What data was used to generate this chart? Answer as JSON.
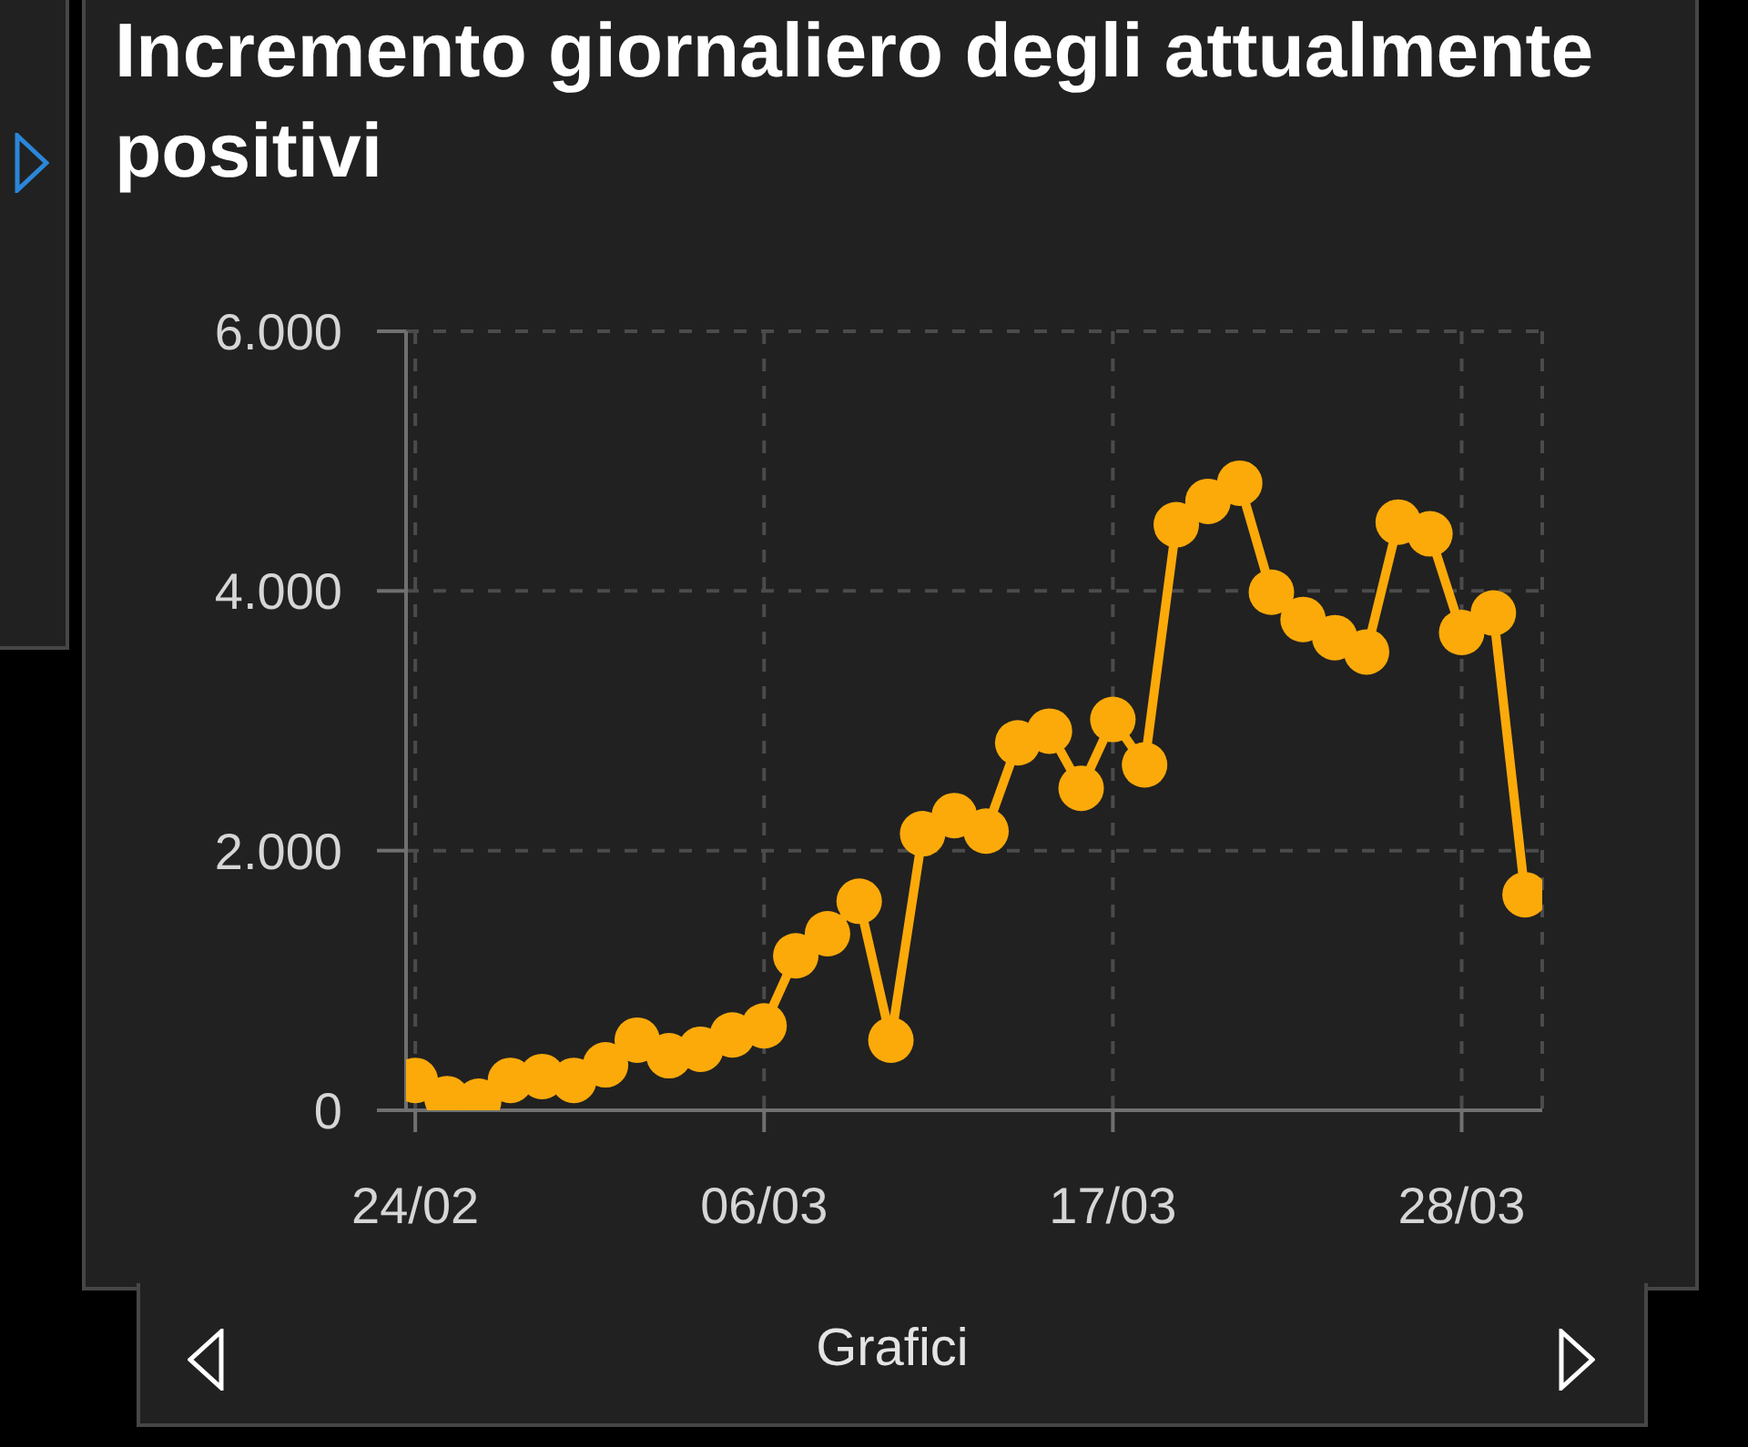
{
  "chart_data": {
    "type": "line",
    "title": "Incremento giornaliero degli attualmente positivi",
    "x": [
      "--02-24",
      "--02-25",
      "--02-26",
      "--02-27",
      "--02-28",
      "--02-29",
      "--03-01",
      "--03-02",
      "--03-03",
      "--03-04",
      "--03-05",
      "--03-06",
      "--03-07",
      "--03-08",
      "--03-09",
      "--03-10",
      "--03-11",
      "--03-12",
      "--03-13",
      "--03-14",
      "--03-15",
      "--03-16",
      "--03-17",
      "--03-18",
      "--03-19",
      "--03-20",
      "--03-21",
      "--03-22",
      "--03-23",
      "--03-24",
      "--03-25",
      "--03-26",
      "--03-27",
      "--03-28",
      "--03-29",
      "--03-30"
    ],
    "values": [
      230,
      90,
      70,
      230,
      260,
      230,
      350,
      540,
      420,
      470,
      580,
      650,
      1190,
      1360,
      1610,
      540,
      2130,
      2270,
      2150,
      2830,
      2920,
      2480,
      3010,
      2660,
      4510,
      4690,
      4830,
      3990,
      3780,
      3640,
      3530,
      4530,
      4440,
      3680,
      3830,
      1660
    ],
    "color": "#fbaa0a",
    "marker": "circle",
    "line_style": "solid",
    "xlim": [
      "--02-23T17:00",
      "--03-30T13:00"
    ],
    "xticks": [
      {
        "value": "--02-24",
        "label": "24/02"
      },
      {
        "value": "--03-06",
        "label": "06/03"
      },
      {
        "value": "--03-17",
        "label": "17/03"
      },
      {
        "value": "--03-28",
        "label": "28/03"
      }
    ],
    "ylim": [
      0,
      6000
    ],
    "yticks": [
      0,
      {
        "value": 2000,
        "label": "2.000"
      },
      {
        "value": 4000,
        "label": "4.000"
      },
      {
        "value": 6000,
        "label": "6.000"
      }
    ],
    "grid": true,
    "annotations": [
      "Grafici"
    ]
  }
}
